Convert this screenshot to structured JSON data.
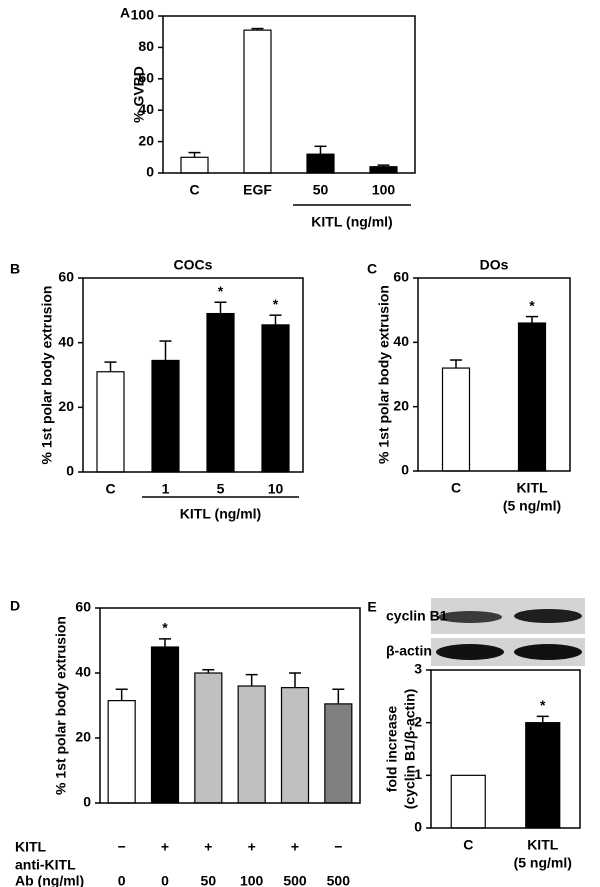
{
  "chart_data": [
    {
      "type": "bar",
      "panel": "A",
      "y_label": "% GVBD",
      "categories": [
        "C",
        "EGF",
        "50",
        "100"
      ],
      "values": [
        10,
        91,
        12,
        4
      ],
      "errors": [
        3,
        1,
        5,
        1
      ],
      "colors": [
        "#ffffff",
        "#ffffff",
        "#000000",
        "#000000"
      ],
      "group_label": "KITL (ng/ml)",
      "ylim": [
        0,
        100
      ],
      "yticks": [
        0,
        20,
        40,
        60,
        80,
        100
      ]
    },
    {
      "type": "bar",
      "panel": "B",
      "title": "COCs",
      "y_label": "% 1st polar body extrusion",
      "categories": [
        "C",
        "1",
        "5",
        "10"
      ],
      "values": [
        31,
        34.5,
        49,
        45.5
      ],
      "errors": [
        3,
        6,
        3.5,
        3
      ],
      "colors": [
        "#ffffff",
        "#000000",
        "#000000",
        "#000000"
      ],
      "value_annotations": [
        null,
        null,
        "*",
        "*"
      ],
      "group_label": "KITL (ng/ml)",
      "ylim": [
        0,
        60
      ],
      "yticks": [
        0,
        20,
        40,
        60
      ]
    },
    {
      "type": "bar",
      "panel": "C",
      "title": "DOs",
      "y_label": "% 1st polar body extrusion",
      "categories": [
        "C",
        "KITL"
      ],
      "category_sublabels": [
        null,
        "(5 ng/ml)"
      ],
      "values": [
        32,
        46
      ],
      "errors": [
        2.5,
        2
      ],
      "colors": [
        "#ffffff",
        "#000000"
      ],
      "value_annotations": [
        null,
        "*"
      ],
      "ylim": [
        0,
        60
      ],
      "yticks": [
        0,
        20,
        40,
        60
      ]
    },
    {
      "type": "bar",
      "panel": "D",
      "y_label": "% 1st polar body extrusion",
      "categories": [
        "0",
        "0",
        "50",
        "100",
        "500",
        "500"
      ],
      "kitl_label": "KITL",
      "kitl_signs": [
        "−",
        "+",
        "+",
        "+",
        "+",
        "−"
      ],
      "ab_label": [
        "anti-KITL",
        "Ab (ng/ml)"
      ],
      "values": [
        31.5,
        48,
        40,
        36,
        35.5,
        30.5
      ],
      "errors": [
        3.5,
        2.5,
        1,
        3.5,
        4.5,
        4.5
      ],
      "colors": [
        "#ffffff",
        "#000000",
        "#c0c0c0",
        "#c0c0c0",
        "#c0c0c0",
        "#808080"
      ],
      "value_annotations": [
        null,
        "*",
        null,
        null,
        null,
        null
      ],
      "ylim": [
        0,
        60
      ],
      "yticks": [
        0,
        20,
        40,
        60
      ]
    },
    {
      "type": "bar",
      "panel": "E",
      "y_label": [
        "fold increase",
        "(cyclin B1/β-actin)"
      ],
      "blot_labels": [
        "cyclin B1",
        "β-actin"
      ],
      "categories": [
        "C",
        "KITL"
      ],
      "category_sublabels": [
        null,
        "(5 ng/ml)"
      ],
      "values": [
        1,
        2.0
      ],
      "errors": [
        0,
        0.12
      ],
      "colors": [
        "#ffffff",
        "#000000"
      ],
      "value_annotations": [
        null,
        "*"
      ],
      "ylim": [
        0,
        3
      ],
      "yticks": [
        0,
        1,
        2,
        3
      ]
    }
  ]
}
